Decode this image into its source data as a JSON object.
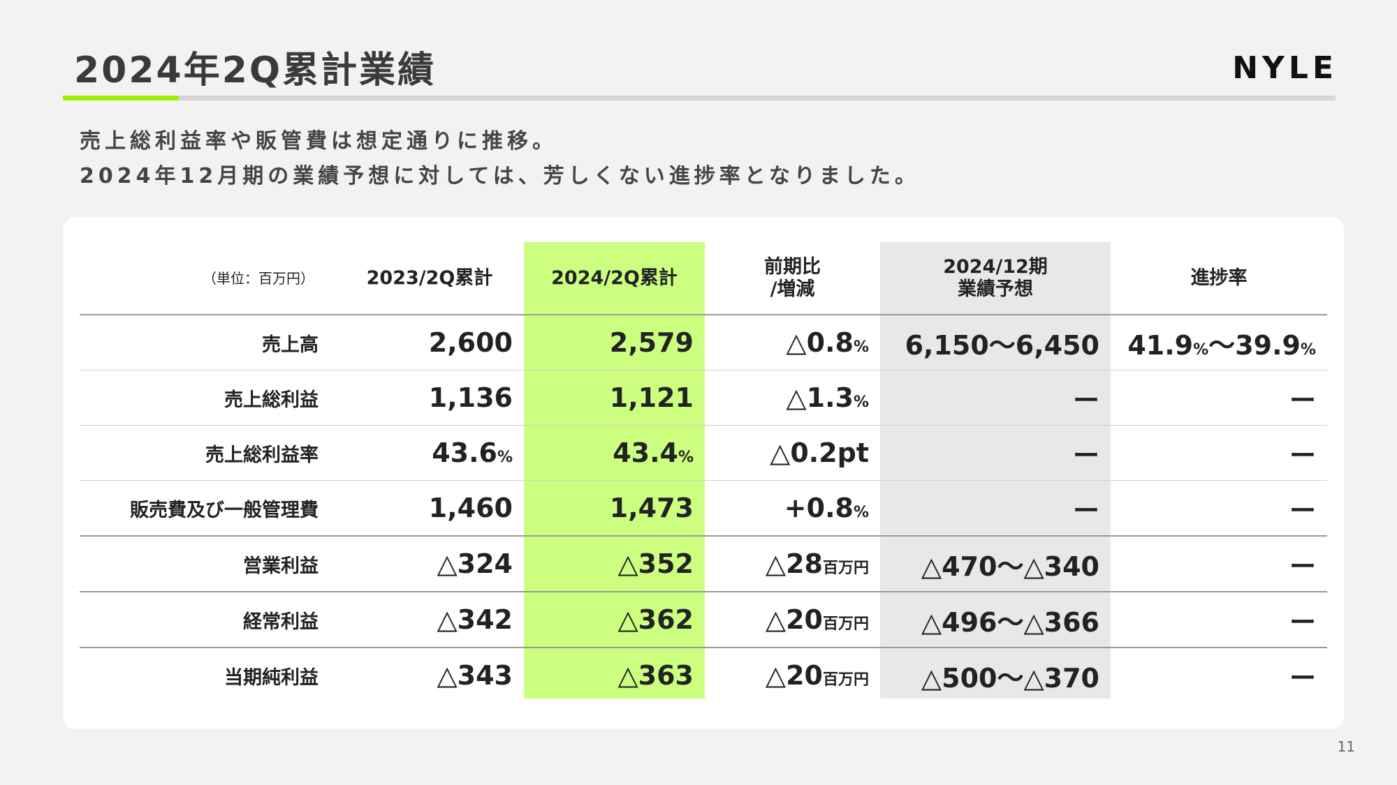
{
  "slide": {
    "title": "2024年2Q累計業績",
    "logo": "NYLE",
    "subtitle_line1": "売上総利益率や販管費は想定通りに推移。",
    "subtitle_line2": "2024年12月期の業績予想に対しては、芳しくない進捗率となりました。",
    "page_number": "11",
    "accent_color": "#9cf000",
    "highlight_color": "#ccff80"
  },
  "table": {
    "headers": {
      "unit": "（単位：百万円）",
      "prev": "2023/2Q累計",
      "curr": "2024/2Q累計",
      "yoy_line1": "前期比",
      "yoy_line2": "/増減",
      "forecast_line1": "2024/12期",
      "forecast_line2": "業績予想",
      "progress": "進捗率"
    },
    "rows": [
      {
        "label": "売上高",
        "prev": "2,600",
        "curr": "2,579",
        "yoy": "△0.8",
        "yoy_unit": "%",
        "forecast": "6,150〜6,450",
        "progress": "41.9",
        "progress_unit1": "%",
        "progress_sep": "〜",
        "progress2": "39.9",
        "progress_unit2": "%"
      },
      {
        "label": "売上総利益",
        "prev": "1,136",
        "curr": "1,121",
        "yoy": "△1.3",
        "yoy_unit": "%",
        "forecast": "ー",
        "progress": "ー"
      },
      {
        "label": "売上総利益率",
        "prev": "43.6",
        "prev_unit": "%",
        "curr": "43.4",
        "curr_unit": "%",
        "yoy": "△0.2pt",
        "forecast": "ー",
        "progress": "ー"
      },
      {
        "label": "販売費及び一般管理費",
        "prev": "1,460",
        "curr": "1,473",
        "yoy": "+0.8",
        "yoy_unit": "%",
        "forecast": "ー",
        "progress": "ー"
      },
      {
        "label": "営業利益",
        "prev": "△324",
        "curr": "△352",
        "yoy": "△28",
        "yoy_unit": "百万円",
        "forecast": "△470〜△340",
        "progress": "ー"
      },
      {
        "label": "経常利益",
        "prev": "△342",
        "curr": "△362",
        "yoy": "△20",
        "yoy_unit": "百万円",
        "forecast": "△496〜△366",
        "progress": "ー"
      },
      {
        "label": "当期純利益",
        "prev": "△343",
        "curr": "△363",
        "yoy": "△20",
        "yoy_unit": "百万円",
        "forecast": "△500〜△370",
        "progress": "ー"
      }
    ]
  }
}
